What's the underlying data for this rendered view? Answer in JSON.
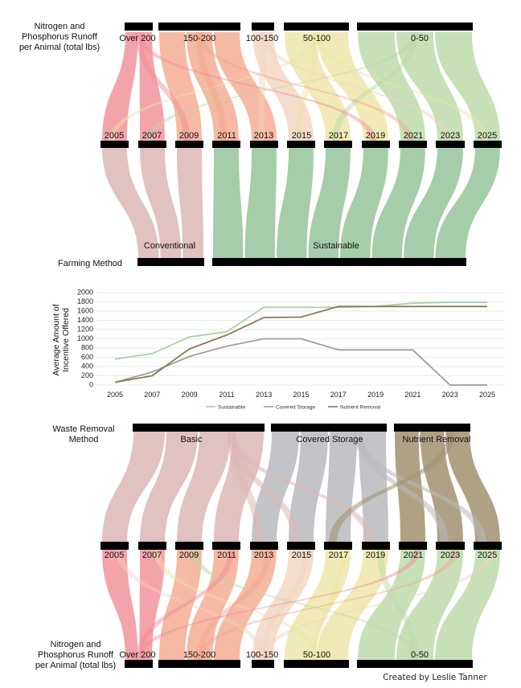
{
  "colors": {
    "runoff": {
      "Over 200": "#ef8a94",
      "150-200": "#f4a58a",
      "100-150": "#f2d3bf",
      "50-100": "#ece4a4",
      "0-50": "#b9d7a3"
    },
    "farming": {
      "Conventional": "#ddb6b6",
      "Sustainable": "#96c49a"
    },
    "waste": {
      "Basic": "#ddb6b6",
      "Covered Storage": "#b9babd",
      "Nutrient Removal": "#a1916f"
    },
    "line": {
      "Sustainable": "#a6d4a4",
      "Covered Storage": "#9e9e9e",
      "Nutrient Removal": "#8b7a55"
    }
  },
  "top": {
    "title_line1": "Nitrogen and",
    "title_line2": "Phosphorus Runoff",
    "title_line3": "per Animal (total lbs)",
    "categories": [
      "Over 200",
      "150-200",
      "100-150",
      "50-100",
      "0-50"
    ],
    "years": [
      "2005",
      "2007",
      "2009",
      "2011",
      "2013",
      "2015",
      "2017",
      "2019",
      "2021",
      "2023",
      "2025"
    ],
    "method_title": "Farming Method",
    "methods": [
      "Conventional",
      "Sustainable"
    ]
  },
  "chart_data": {
    "type": "line",
    "x": [
      "2005",
      "2007",
      "2009",
      "2011",
      "2013",
      "2015",
      "2017",
      "2019",
      "2021",
      "2023",
      "2025"
    ],
    "ylabel_line1": "Average Amount of",
    "ylabel_line2": "Incentive Offered",
    "yticks": [
      "0",
      "200",
      "400",
      "600",
      "800",
      "1000",
      "1200",
      "1400",
      "1600",
      "1800",
      "2000"
    ],
    "ylim": [
      0,
      2000
    ],
    "grid": true,
    "legend_position": "bottom",
    "series": [
      {
        "name": "Sustainable",
        "values": [
          560,
          680,
          1040,
          1150,
          1680,
          1680,
          1680,
          1700,
          1770,
          1790,
          1790
        ]
      },
      {
        "name": "Covered Storage",
        "values": [
          60,
          280,
          620,
          840,
          1000,
          1000,
          760,
          760,
          760,
          0,
          0
        ]
      },
      {
        "name": "Nutrient Removal",
        "values": [
          60,
          200,
          780,
          1080,
          1460,
          1470,
          1700,
          1700,
          1700,
          1700,
          1700
        ]
      }
    ]
  },
  "bottom": {
    "method_title_line1": "Waste Removal",
    "method_title_line2": "Method",
    "methods": [
      "Basic",
      "Covered Storage",
      "Nutrient Removal"
    ],
    "years": [
      "2005",
      "2007",
      "2009",
      "2011",
      "2013",
      "2015",
      "2017",
      "2019",
      "2021",
      "2023",
      "2025"
    ],
    "title_line1": "Nitrogen and",
    "title_line2": "Phosphorus Runoff",
    "title_line3": "per Animal (total lbs)",
    "categories": [
      "Over 200",
      "150-200",
      "100-150",
      "50-100",
      "0-50"
    ]
  },
  "credit": "Created by Leslie Tanner"
}
